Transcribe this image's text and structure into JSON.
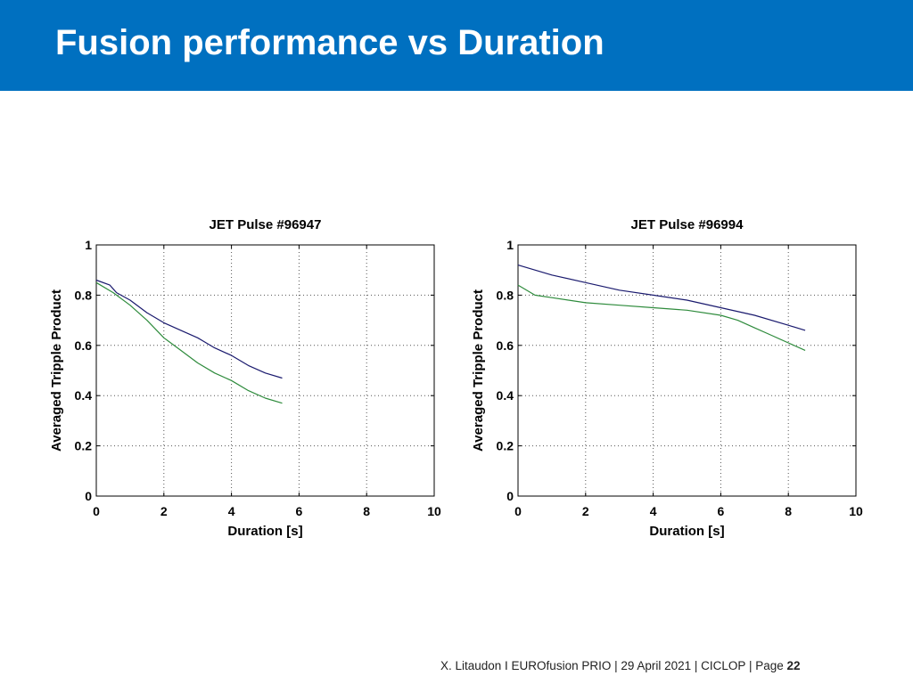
{
  "slide": {
    "title": "Fusion performance vs Duration",
    "header_color": "#0070c0"
  },
  "footer": {
    "text": "X. Litaudon I EUROfusion PRIO | 29 April  2021 | CICLOP | Page ",
    "page": "22"
  },
  "chart_data": [
    {
      "type": "line",
      "title": "JET Pulse #96947",
      "xlabel": "Duration [s]",
      "ylabel": "Averaged Tripple Product",
      "xlim": [
        0,
        10
      ],
      "ylim": [
        0,
        1
      ],
      "xticks": [
        0,
        2,
        4,
        6,
        8,
        10
      ],
      "xtick_labels": [
        "0",
        "2",
        "4",
        "6",
        "8",
        "10"
      ],
      "yticks": [
        0,
        0.2,
        0.4,
        0.6,
        0.8,
        1
      ],
      "ytick_labels": [
        "0",
        "0.2",
        "0.4",
        "0.6",
        "0.8",
        "1"
      ],
      "grid": true,
      "series": [
        {
          "color": "#1a1a6e",
          "x": [
            0,
            0.4,
            0.6,
            1,
            1.5,
            2,
            2.5,
            3,
            3.5,
            4,
            4.5,
            5,
            5.5
          ],
          "y": [
            0.86,
            0.84,
            0.81,
            0.78,
            0.73,
            0.69,
            0.66,
            0.63,
            0.59,
            0.56,
            0.52,
            0.49,
            0.47
          ]
        },
        {
          "color": "#2e8b3c",
          "x": [
            0,
            0.5,
            1,
            1.5,
            2,
            2.5,
            3,
            3.5,
            4,
            4.5,
            5,
            5.5
          ],
          "y": [
            0.85,
            0.81,
            0.76,
            0.7,
            0.63,
            0.58,
            0.53,
            0.49,
            0.46,
            0.42,
            0.39,
            0.37
          ]
        }
      ]
    },
    {
      "type": "line",
      "title": "JET Pulse #96994",
      "xlabel": "Duration [s]",
      "ylabel": "Averaged Tripple Product",
      "xlim": [
        0,
        10
      ],
      "ylim": [
        0,
        1
      ],
      "xticks": [
        0,
        2,
        4,
        6,
        8,
        10
      ],
      "xtick_labels": [
        "0",
        "2",
        "4",
        "6",
        "8",
        "10"
      ],
      "yticks": [
        0,
        0.2,
        0.4,
        0.6,
        0.8,
        1
      ],
      "ytick_labels": [
        "0",
        "0.2",
        "0.4",
        "0.6",
        "0.8",
        "1"
      ],
      "grid": true,
      "series": [
        {
          "color": "#1a1a6e",
          "x": [
            0,
            1,
            2,
            3,
            4,
            5,
            6,
            7,
            8,
            8.5
          ],
          "y": [
            0.92,
            0.88,
            0.85,
            0.82,
            0.8,
            0.78,
            0.75,
            0.72,
            0.68,
            0.66
          ]
        },
        {
          "color": "#2e8b3c",
          "x": [
            0,
            0.5,
            1,
            2,
            3,
            4,
            5,
            6,
            6.5,
            7,
            7.5,
            8,
            8.5
          ],
          "y": [
            0.84,
            0.8,
            0.79,
            0.77,
            0.76,
            0.75,
            0.74,
            0.72,
            0.7,
            0.67,
            0.64,
            0.61,
            0.58
          ]
        }
      ]
    }
  ]
}
